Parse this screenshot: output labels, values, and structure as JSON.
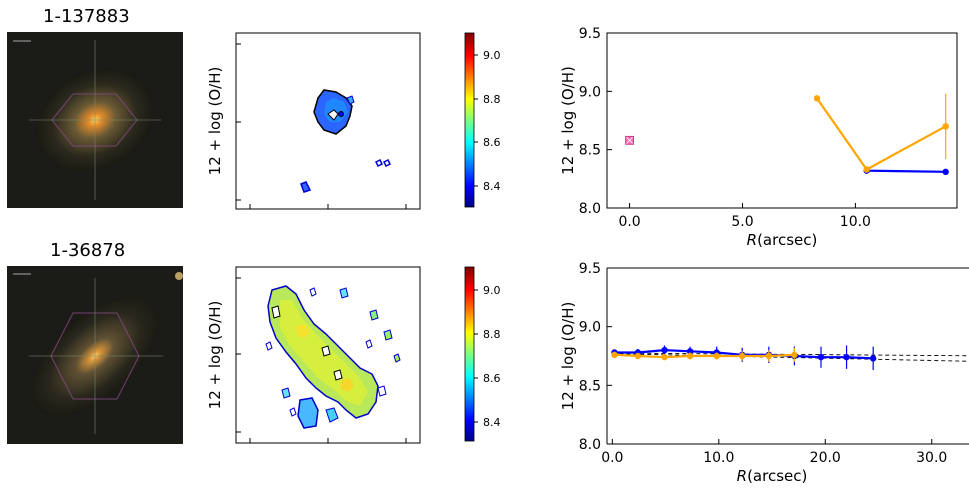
{
  "rows": [
    {
      "galaxy_id": "1-137883",
      "map": {
        "ylabel": "12 + log (O/H)"
      },
      "colorbar": {
        "ticks": [
          "8.4",
          "8.6",
          "8.8",
          "9.0"
        ],
        "min": 8.3,
        "max": 9.1
      }
    },
    {
      "galaxy_id": "1-36878",
      "map": {
        "ylabel": "12 + log (O/H)"
      },
      "colorbar": {
        "ticks": [
          "8.4",
          "8.6",
          "8.8",
          "9.0"
        ],
        "min": 8.3,
        "max": 9.1
      }
    }
  ],
  "colors": {
    "blue_series": "#0000ff",
    "orange_series": "#ffa500",
    "marker_pink": "#ff69b4",
    "fit_line": "#000000",
    "axis": "#000000"
  },
  "chart_data": [
    {
      "type": "line",
      "xlabel": "R(arcsec)",
      "ylabel": "12 + log (O/H)",
      "xlim": [
        -1.0,
        14.5
      ],
      "ylim": [
        8.0,
        9.5
      ],
      "xticks": [
        0.0,
        5.0,
        10.0
      ],
      "xtick_labels": [
        "0.0",
        "5.0",
        "10.0"
      ],
      "yticks": [
        8.0,
        8.5,
        9.0,
        9.5
      ],
      "ytick_labels": [
        "8.0",
        "8.5",
        "9.0",
        "9.5"
      ],
      "grid": false,
      "series": [
        {
          "color": "blue",
          "x": [
            10.5,
            14.0
          ],
          "y": [
            8.32,
            8.31
          ],
          "err": [
            0,
            0
          ]
        },
        {
          "color": "orange",
          "x": [
            8.3,
            10.5,
            14.0
          ],
          "y": [
            8.94,
            8.33,
            8.7
          ],
          "err": [
            0,
            0,
            0.28
          ]
        }
      ],
      "markers": [
        {
          "x": 0.0,
          "y": 8.58,
          "shape": "square",
          "color": "pink"
        }
      ]
    },
    {
      "type": "line",
      "xlabel": "R(arcsec)",
      "ylabel": "12 + log (O/H)",
      "xlim": [
        -0.5,
        33.5
      ],
      "ylim": [
        8.0,
        9.5
      ],
      "xticks": [
        0.0,
        10.0,
        20.0,
        30.0
      ],
      "xtick_labels": [
        "0.0",
        "10.0",
        "20.0",
        "30.0"
      ],
      "yticks": [
        8.0,
        8.5,
        9.0,
        9.5
      ],
      "ytick_labels": [
        "8.0",
        "8.5",
        "9.0",
        "9.5"
      ],
      "grid": false,
      "series": [
        {
          "color": "blue",
          "x": [
            0.2,
            2.4,
            4.9,
            7.3,
            9.8,
            12.2,
            14.7,
            17.1,
            19.6,
            22.0,
            24.5
          ],
          "y": [
            8.78,
            8.78,
            8.8,
            8.79,
            8.78,
            8.76,
            8.76,
            8.75,
            8.74,
            8.74,
            8.73
          ],
          "err": [
            0.02,
            0.03,
            0.04,
            0.04,
            0.05,
            0.06,
            0.07,
            0.08,
            0.09,
            0.1,
            0.1
          ]
        },
        {
          "color": "orange",
          "x": [
            0.2,
            2.4,
            4.9,
            7.3,
            9.8,
            12.2,
            14.7,
            17.1
          ],
          "y": [
            8.76,
            8.75,
            8.74,
            8.75,
            8.75,
            8.75,
            8.75,
            8.76
          ],
          "err": [
            0.02,
            0.02,
            0.02,
            0.03,
            0.03,
            0.04,
            0.05,
            0.06
          ]
        }
      ],
      "fit_lines": [
        {
          "x": [
            0.0,
            33.5
          ],
          "y": [
            8.775,
            8.752
          ],
          "style": "dashed"
        },
        {
          "x": [
            0.0,
            33.5
          ],
          "y": [
            8.77,
            8.705
          ],
          "style": "dashed"
        }
      ]
    }
  ]
}
